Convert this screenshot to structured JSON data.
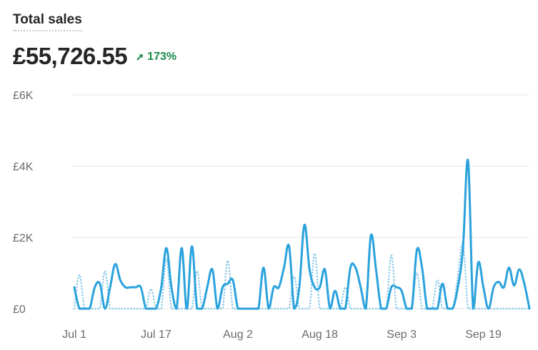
{
  "header": {
    "title": "Total sales",
    "value": "£55,726.55",
    "change": "173%",
    "change_icon": "arrow-up-right-icon"
  },
  "colors": {
    "current": "#2aa2dc",
    "previous": "#8fcbe9",
    "positive": "#1a8a4a",
    "grid": "#e6e6e6"
  },
  "chart_data": {
    "type": "line",
    "ylim": [
      0,
      6000
    ],
    "yticks": [
      0,
      2000,
      4000,
      6000
    ],
    "ytick_labels": [
      "£0",
      "£2K",
      "£4K",
      "£6K"
    ],
    "xtick_labels": [
      "Jul 1",
      "Jul 17",
      "Aug 2",
      "Aug 18",
      "Sep 3",
      "Sep 19"
    ],
    "xtick_days": [
      0,
      16,
      32,
      48,
      64,
      80
    ],
    "grid": true,
    "series": [
      {
        "style": "solid",
        "values": [
          600,
          0,
          0,
          0,
          600,
          700,
          0,
          600,
          1250,
          800,
          600,
          600,
          600,
          600,
          0,
          0,
          0,
          600,
          1700,
          600,
          0,
          1700,
          0,
          1750,
          0,
          0,
          600,
          1100,
          0,
          600,
          700,
          800,
          0,
          0,
          0,
          0,
          0,
          1150,
          0,
          600,
          600,
          1150,
          1750,
          0,
          600,
          2350,
          1100,
          600,
          600,
          1100,
          0,
          500,
          0,
          0,
          1150,
          1150,
          600,
          0,
          2050,
          1100,
          0,
          0,
          600,
          600,
          500,
          0,
          0,
          1650,
          1150,
          0,
          0,
          0,
          700,
          0,
          0,
          600,
          1700,
          4150,
          0,
          1300,
          600,
          0,
          600,
          750,
          600,
          1150,
          650,
          1100,
          700,
          0
        ]
      },
      {
        "style": "dotted",
        "values": [
          0,
          950,
          0,
          0,
          0,
          0,
          1050,
          0,
          0,
          0,
          0,
          0,
          0,
          0,
          0,
          550,
          0,
          0,
          1400,
          0,
          0,
          0,
          0,
          0,
          1050,
          0,
          0,
          0,
          0,
          0,
          1350,
          0,
          0,
          0,
          0,
          0,
          0,
          0,
          0,
          0,
          0,
          0,
          0,
          900,
          0,
          0,
          0,
          1550,
          0,
          0,
          0,
          0,
          0,
          600,
          0,
          0,
          0,
          0,
          0,
          0,
          0,
          0,
          1500,
          0,
          0,
          0,
          0,
          1000,
          0,
          0,
          0,
          800,
          0,
          0,
          0,
          900,
          1800,
          0,
          0,
          0,
          0,
          0,
          0,
          0,
          0,
          0,
          0,
          0,
          0,
          0
        ]
      }
    ]
  }
}
